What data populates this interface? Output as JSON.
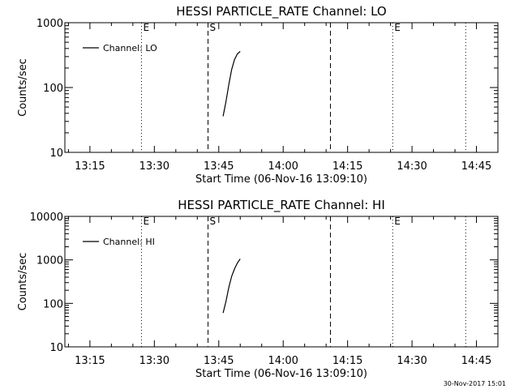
{
  "chart_data": [
    {
      "type": "line",
      "title": "HESSI PARTICLE_RATE Channel: LO",
      "xlabel": "Start Time (06-Nov-16 13:09:10)",
      "ylabel": "Counts/sec",
      "yscale": "log",
      "ylim": [
        10,
        1000
      ],
      "yticks": [
        {
          "value": 10,
          "label": "10"
        },
        {
          "value": 100,
          "label": "100"
        },
        {
          "value": 1000,
          "label": "1000"
        }
      ],
      "xlim": [
        "13:09:10",
        "14:50:00"
      ],
      "xticks": [
        "13:15",
        "13:30",
        "13:45",
        "14:00",
        "14:15",
        "14:30",
        "14:45"
      ],
      "legend": "top-left",
      "series": [
        {
          "name": "Channel: LO",
          "x": [
            "13:46:00",
            "13:46:40",
            "13:47:20",
            "13:48:00",
            "13:48:40",
            "13:49:20",
            "13:50:00"
          ],
          "y": [
            36,
            60,
            110,
            190,
            270,
            330,
            360
          ]
        }
      ],
      "markers": [
        {
          "time": "13:27:00",
          "style": "dotted",
          "label": "E"
        },
        {
          "time": "13:42:30",
          "style": "dashed",
          "label": "S"
        },
        {
          "time": "14:11:00",
          "style": "dashed",
          "label": ""
        },
        {
          "time": "14:25:30",
          "style": "dotted",
          "label": "E"
        },
        {
          "time": "14:42:30",
          "style": "dotted",
          "label": ""
        }
      ]
    },
    {
      "type": "line",
      "title": "HESSI PARTICLE_RATE Channel: HI",
      "xlabel": "Start Time (06-Nov-16 13:09:10)",
      "ylabel": "Counts/sec",
      "yscale": "log",
      "ylim": [
        10,
        10000
      ],
      "yticks": [
        {
          "value": 10,
          "label": "10"
        },
        {
          "value": 100,
          "label": "100"
        },
        {
          "value": 1000,
          "label": "1000"
        },
        {
          "value": 10000,
          "label": "10000"
        }
      ],
      "xlim": [
        "13:09:10",
        "14:50:00"
      ],
      "xticks": [
        "13:15",
        "13:30",
        "13:45",
        "14:00",
        "14:15",
        "14:30",
        "14:45"
      ],
      "legend": "top-left",
      "series": [
        {
          "name": "Channel: HI",
          "x": [
            "13:46:00",
            "13:46:40",
            "13:47:20",
            "13:48:00",
            "13:48:40",
            "13:49:20",
            "13:50:00"
          ],
          "y": [
            60,
            110,
            230,
            420,
            620,
            850,
            1050
          ]
        }
      ],
      "markers": [
        {
          "time": "13:27:00",
          "style": "dotted",
          "label": "E"
        },
        {
          "time": "13:42:30",
          "style": "dashed",
          "label": "S"
        },
        {
          "time": "14:11:00",
          "style": "dashed",
          "label": ""
        },
        {
          "time": "14:25:30",
          "style": "dotted",
          "label": "E"
        },
        {
          "time": "14:42:30",
          "style": "dotted",
          "label": ""
        }
      ]
    }
  ],
  "footer": {
    "timestamp": "30-Nov-2017 15:01"
  }
}
